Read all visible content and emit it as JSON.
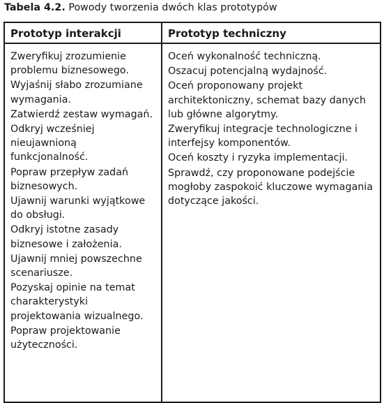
{
  "caption": {
    "number": "Tabela 4.2.",
    "title": "Powody tworzenia dwóch klas prototypów"
  },
  "table": {
    "columns": [
      {
        "header": "Prototyp interakcji",
        "items": [
          "Zweryfikuj zrozumienie problemu biznesowego.",
          "Wyjaśnij słabo zrozumiane wymagania.",
          "Zatwierdź zestaw wymagań.",
          "Odkryj wcześniej nieujawnioną funkcjonalność.",
          "Popraw przepływ zadań biznesowych.",
          "Ujawnij warunki wyjątkowe do obsługi.",
          "Odkryj istotne zasady biznesowe i założenia.",
          "Ujawnij mniej powszechne scenariusze.",
          "Pozyskaj opinie na temat charakterystyki projektowania wizualnego.",
          "Popraw projektowanie użyteczności."
        ]
      },
      {
        "header": "Prototyp techniczny",
        "items": [
          "Oceń wykonalność techniczną.",
          "Oszacuj potencjalną wydajność.",
          "Oceń proponowany projekt architektoniczny, schemat bazy danych lub główne algorytmy.",
          "Zweryfikuj integracje technologiczne i interfejsy komponentów.",
          "Oceń koszty i ryzyka implementacji.",
          "Sprawdź, czy proponowane podejście mogłoby zaspokoić kluczowe wymagania dotyczące jakości."
        ]
      }
    ]
  }
}
